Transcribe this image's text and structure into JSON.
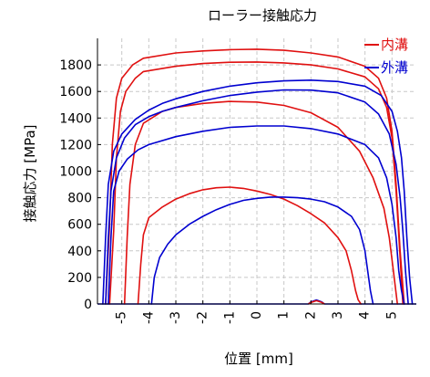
{
  "chart_data": {
    "type": "line",
    "title": "ローラー接触応力",
    "xlabel": "位置 [mm]",
    "ylabel": "接触応力 [MPa]",
    "xlim": [
      -5.9,
      5.9
    ],
    "ylim": [
      0,
      2000
    ],
    "x_ticks": [
      -5,
      -4,
      -3,
      -2,
      -1,
      0,
      1,
      2,
      3,
      4,
      5
    ],
    "y_ticks": [
      0,
      200,
      400,
      600,
      800,
      1000,
      1200,
      1400,
      1600,
      1800
    ],
    "grid": true,
    "legend_position": "top-right",
    "legend": [
      {
        "name": "内溝",
        "color": "#e01010"
      },
      {
        "name": "外溝",
        "color": "#0000d0"
      }
    ],
    "series": [
      {
        "group": "内溝",
        "color": "#e01010",
        "x": [
          -5.6,
          -5.45,
          -5.35,
          -5.2,
          -5.0,
          -4.6,
          -4.2,
          -3.0,
          -2.0,
          -1.0,
          0.0,
          1.0,
          2.0,
          3.0,
          4.0,
          4.5,
          4.8,
          5.0,
          5.15,
          5.3,
          5.45
        ],
        "y": [
          0,
          600,
          1200,
          1550,
          1700,
          1800,
          1850,
          1890,
          1905,
          1915,
          1918,
          1910,
          1890,
          1860,
          1790,
          1700,
          1550,
          1300,
          900,
          400,
          0
        ]
      },
      {
        "group": "内溝",
        "color": "#e01010",
        "x": [
          -5.45,
          -5.3,
          -5.2,
          -5.05,
          -4.85,
          -4.5,
          -4.2,
          -3.0,
          -2.0,
          -1.0,
          0.0,
          1.0,
          2.0,
          3.0,
          4.0,
          4.5,
          4.8,
          5.0,
          5.15,
          5.3,
          5.4
        ],
        "y": [
          0,
          550,
          1100,
          1450,
          1600,
          1700,
          1750,
          1790,
          1810,
          1820,
          1822,
          1815,
          1800,
          1770,
          1710,
          1620,
          1480,
          1250,
          850,
          350,
          0
        ]
      },
      {
        "group": "内溝",
        "color": "#e01010",
        "x": [
          -4.9,
          -4.8,
          -4.7,
          -4.5,
          -4.2,
          -3.5,
          -3.0,
          -2.0,
          -1.0,
          0.0,
          1.0,
          2.0,
          3.0,
          3.8,
          4.3,
          4.7,
          4.9,
          5.05,
          5.2
        ],
        "y": [
          0,
          500,
          900,
          1200,
          1360,
          1450,
          1480,
          1510,
          1525,
          1520,
          1495,
          1440,
          1330,
          1150,
          950,
          720,
          500,
          250,
          0
        ]
      },
      {
        "group": "内溝",
        "color": "#e01010",
        "x": [
          -4.4,
          -4.3,
          -4.2,
          -4.0,
          -3.5,
          -3.0,
          -2.5,
          -2.0,
          -1.5,
          -1.0,
          -0.5,
          0.0,
          0.5,
          1.0,
          1.5,
          2.0,
          2.5,
          3.0,
          3.3,
          3.5,
          3.65,
          3.75,
          3.85
        ],
        "y": [
          0,
          300,
          520,
          650,
          730,
          790,
          830,
          860,
          875,
          880,
          870,
          850,
          825,
          790,
          740,
          680,
          610,
          500,
          400,
          250,
          100,
          30,
          0
        ]
      },
      {
        "group": "外溝",
        "color": "#0000d0",
        "x": [
          -5.7,
          -5.6,
          -5.5,
          -5.3,
          -5.0,
          -4.5,
          -4.0,
          -3.5,
          -3.0,
          -2.0,
          -1.0,
          0.0,
          1.0,
          2.0,
          3.0,
          4.0,
          4.6,
          5.0,
          5.2,
          5.35,
          5.45,
          5.55,
          5.65,
          5.75
        ],
        "y": [
          0,
          500,
          900,
          1150,
          1280,
          1390,
          1460,
          1510,
          1545,
          1600,
          1640,
          1665,
          1680,
          1685,
          1675,
          1640,
          1570,
          1450,
          1300,
          1100,
          850,
          500,
          200,
          0
        ]
      },
      {
        "group": "外溝",
        "color": "#0000d0",
        "x": [
          -5.6,
          -5.5,
          -5.4,
          -5.2,
          -4.9,
          -4.5,
          -4.0,
          -3.5,
          -3.0,
          -2.0,
          -1.0,
          0.0,
          1.0,
          2.0,
          3.0,
          4.0,
          4.5,
          4.9,
          5.15,
          5.3,
          5.4,
          5.5,
          5.6
        ],
        "y": [
          0,
          500,
          850,
          1100,
          1250,
          1350,
          1410,
          1450,
          1480,
          1530,
          1570,
          1595,
          1612,
          1610,
          1590,
          1520,
          1430,
          1280,
          1050,
          800,
          550,
          250,
          0
        ]
      },
      {
        "group": "外溝",
        "color": "#0000d0",
        "x": [
          -5.5,
          -5.4,
          -5.3,
          -5.1,
          -4.8,
          -4.4,
          -4.0,
          -3.0,
          -2.0,
          -1.0,
          0.0,
          1.0,
          2.0,
          3.0,
          4.0,
          4.5,
          4.8,
          5.0,
          5.15,
          5.25,
          5.35,
          5.45
        ],
        "y": [
          0,
          500,
          850,
          1000,
          1090,
          1160,
          1200,
          1260,
          1300,
          1330,
          1340,
          1340,
          1320,
          1280,
          1200,
          1100,
          950,
          750,
          500,
          250,
          100,
          0
        ]
      },
      {
        "group": "外溝",
        "color": "#0000d0",
        "x": [
          -3.9,
          -3.8,
          -3.6,
          -3.3,
          -3.0,
          -2.5,
          -2.0,
          -1.5,
          -1.0,
          -0.5,
          0.0,
          0.5,
          1.0,
          1.5,
          2.0,
          2.5,
          3.0,
          3.5,
          3.8,
          4.0,
          4.1,
          4.2,
          4.3
        ],
        "y": [
          0,
          200,
          350,
          450,
          520,
          600,
          660,
          710,
          750,
          780,
          795,
          805,
          805,
          800,
          790,
          770,
          730,
          660,
          560,
          400,
          250,
          100,
          0
        ]
      }
    ],
    "baseline_series": [
      {
        "color": "#0000d0",
        "x": [
          -5.9,
          1.9,
          2.0,
          2.2,
          2.4,
          2.5,
          5.9
        ],
        "y": [
          0,
          0,
          15,
          30,
          15,
          0,
          0
        ]
      },
      {
        "color": "#e01010",
        "x": [
          1.9,
          2.0,
          2.2,
          2.4,
          2.5
        ],
        "y": [
          0,
          12,
          25,
          12,
          0
        ]
      }
    ]
  }
}
